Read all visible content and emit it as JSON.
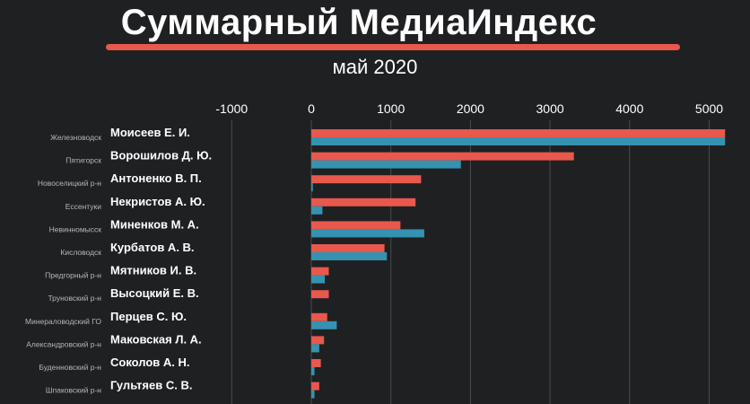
{
  "colors": {
    "background": "#1f2022",
    "series_a": "#e8584c",
    "series_b": "#3592b0"
  },
  "header": {
    "title": "Суммарный МедиаИндекс",
    "subtitle": "май 2020"
  },
  "chart_data": {
    "type": "bar",
    "orientation": "horizontal",
    "title": "Суммарный МедиаИндекс",
    "subtitle": "май 2020",
    "xlim": [
      -1000,
      5000
    ],
    "x_ticks": [
      "-1000",
      "0",
      "1000",
      "2000",
      "3000",
      "4000",
      "5000"
    ],
    "grid": true,
    "categories": [
      {
        "location": "Железноводск",
        "name": "Моисеев Е. И."
      },
      {
        "location": "Пятигорск",
        "name": "Ворошилов Д. Ю."
      },
      {
        "location": "Новоселицкий р-н",
        "name": "Антоненко В. П."
      },
      {
        "location": "Ессентуки",
        "name": "Некристов А. Ю."
      },
      {
        "location": "Невинномысск",
        "name": "Миненков М. А."
      },
      {
        "location": "Кисловодск",
        "name": "Курбатов А. В."
      },
      {
        "location": "Предгорный р-н",
        "name": "Мятников И. В."
      },
      {
        "location": "Труновский р-н",
        "name": "Высоцкий Е. В."
      },
      {
        "location": "Минераловодский ГО",
        "name": "Перцев С. Ю."
      },
      {
        "location": "Александровский р-н",
        "name": "Маковская Л. А."
      },
      {
        "location": "Буденновский р-н",
        "name": "Соколов А. Н."
      },
      {
        "location": "Шпаковский р-н",
        "name": "Гультяев С. В."
      }
    ],
    "series": [
      {
        "color": "#e8584c",
        "values": [
          5200,
          3300,
          1380,
          1310,
          1120,
          920,
          220,
          220,
          200,
          160,
          120,
          100
        ]
      },
      {
        "color": "#3592b0",
        "values": [
          5200,
          1880,
          20,
          140,
          1420,
          950,
          170,
          0,
          320,
          100,
          40,
          40
        ]
      }
    ]
  }
}
